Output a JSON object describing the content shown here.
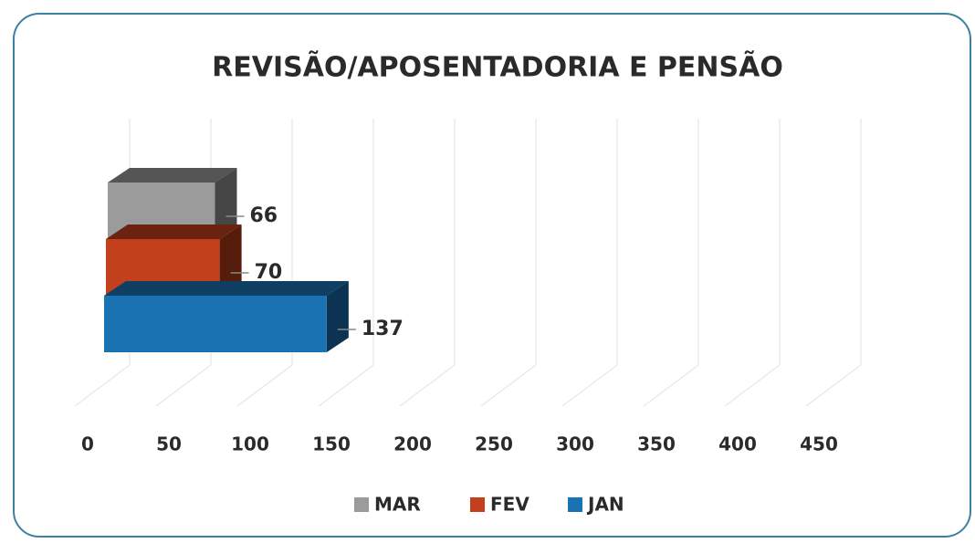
{
  "chart_data": {
    "type": "bar",
    "orientation": "horizontal",
    "title": "REVISÃO/APOSENTADORIA E PENSÃO",
    "categories": [
      null
    ],
    "series": [
      {
        "name": "MAR",
        "color": "#9b9b9b",
        "values": [
          66
        ]
      },
      {
        "name": "FEV",
        "color": "#c2401b",
        "values": [
          70
        ]
      },
      {
        "name": "JAN",
        "color": "#1b72b3",
        "values": [
          137
        ]
      }
    ],
    "xlim": [
      0,
      500
    ],
    "xticks": [
      0,
      50,
      100,
      150,
      200,
      250,
      300,
      350,
      400,
      450
    ],
    "grid": true,
    "legend": "bottom"
  }
}
